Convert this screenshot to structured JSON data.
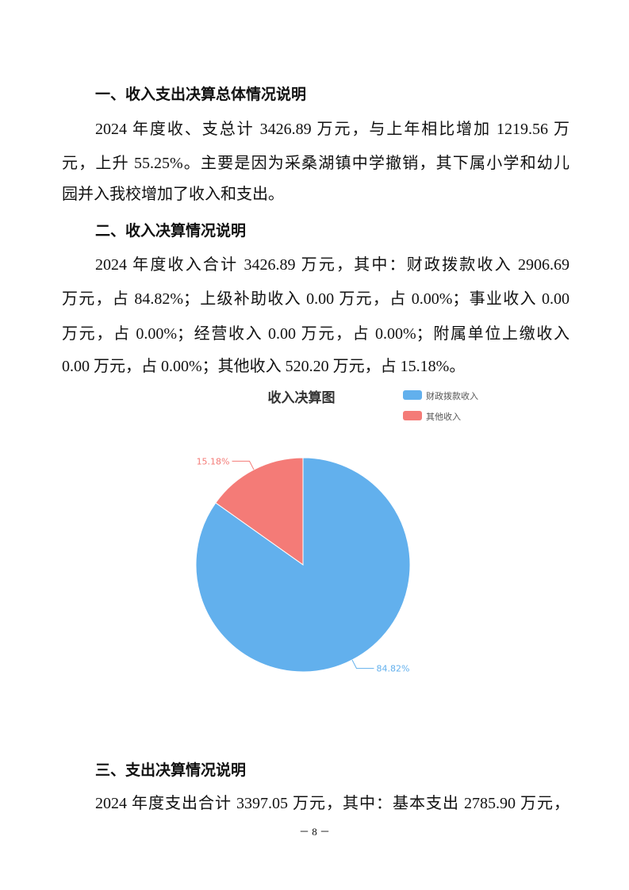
{
  "section1": {
    "heading": "一、收入支出决算总体情况说明",
    "lines": [
      "2024 年度收、支总计 3426.89 万元，与上年相比增加 1219.56 万",
      "元，上升 55.25%。主要是因为采桑湖镇中学撤销，其下属小学和幼儿",
      "园并入我校增加了收入和支出。"
    ]
  },
  "section2": {
    "heading": "二、收入决算情况说明",
    "lines": [
      "2024 年度收入合计 3426.89 万元，其中：财政拨款收入 2906.69",
      "万元，占 84.82%；上级补助收入 0.00 万元，占 0.00%；事业收入 0.00",
      "万元，占 0.00%；经营收入 0.00 万元，占 0.00%；附属单位上缴收入",
      "0.00 万元，占 0.00%；其他收入 520.20 万元，占 15.18%。"
    ]
  },
  "chart_data": {
    "type": "pie",
    "title": "收入决算图",
    "legend_position": "top-right",
    "slices": [
      {
        "name": "财政拨款收入",
        "value": 84.82,
        "label": "84.82%",
        "color": "#62b0ed"
      },
      {
        "name": "其他收入",
        "value": 15.18,
        "label": "15.18%",
        "color": "#f47b77"
      }
    ]
  },
  "section3": {
    "heading": "三、支出决算情况说明",
    "lines": [
      "2024 年度支出合计 3397.05 万元，其中：基本支出 2785.90 万元，"
    ]
  },
  "page_number": "－ 8 －"
}
